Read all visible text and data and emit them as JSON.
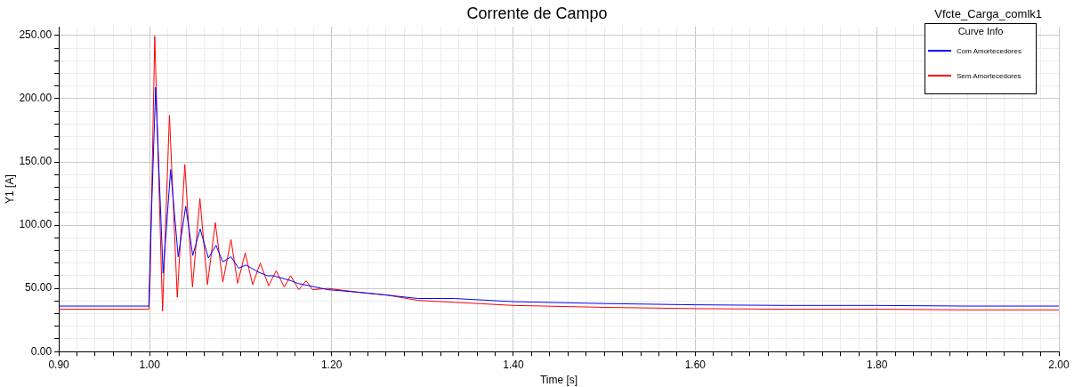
{
  "chart_data": {
    "type": "line",
    "title": "Corrente de Campo",
    "xlabel": "Time [s]",
    "ylabel": "Y1 [A]",
    "legend_title": "Curve Info",
    "annotations": [
      "Vfcte_Carga_comlk1"
    ],
    "xlim": [
      0.9,
      2.0
    ],
    "ylim": [
      0,
      257
    ],
    "xticks": [
      {
        "value": 0.9,
        "label": "0.90"
      },
      {
        "value": 0.92,
        "label": null
      },
      {
        "value": 0.94,
        "label": null
      },
      {
        "value": 0.96,
        "label": null
      },
      {
        "value": 0.98,
        "label": null
      },
      {
        "value": 1.0,
        "label": "1.00"
      },
      {
        "value": 1.02,
        "label": null
      },
      {
        "value": 1.04,
        "label": null
      },
      {
        "value": 1.06,
        "label": null
      },
      {
        "value": 1.08,
        "label": null
      },
      {
        "value": 1.1,
        "label": null
      },
      {
        "value": 1.12,
        "label": null
      },
      {
        "value": 1.14,
        "label": null
      },
      {
        "value": 1.16,
        "label": null
      },
      {
        "value": 1.18,
        "label": null
      },
      {
        "value": 1.2,
        "label": "1.20"
      },
      {
        "value": 1.22,
        "label": null
      },
      {
        "value": 1.24,
        "label": null
      },
      {
        "value": 1.26,
        "label": null
      },
      {
        "value": 1.28,
        "label": null
      },
      {
        "value": 1.3,
        "label": null
      },
      {
        "value": 1.32,
        "label": null
      },
      {
        "value": 1.34,
        "label": null
      },
      {
        "value": 1.36,
        "label": null
      },
      {
        "value": 1.38,
        "label": null
      },
      {
        "value": 1.4,
        "label": "1.40"
      },
      {
        "value": 1.42,
        "label": null
      },
      {
        "value": 1.44,
        "label": null
      },
      {
        "value": 1.46,
        "label": null
      },
      {
        "value": 1.48,
        "label": null
      },
      {
        "value": 1.5,
        "label": null
      },
      {
        "value": 1.52,
        "label": null
      },
      {
        "value": 1.54,
        "label": null
      },
      {
        "value": 1.56,
        "label": null
      },
      {
        "value": 1.58,
        "label": null
      },
      {
        "value": 1.6,
        "label": "1.60"
      },
      {
        "value": 1.62,
        "label": null
      },
      {
        "value": 1.64,
        "label": null
      },
      {
        "value": 1.66,
        "label": null
      },
      {
        "value": 1.68,
        "label": null
      },
      {
        "value": 1.7,
        "label": null
      },
      {
        "value": 1.72,
        "label": null
      },
      {
        "value": 1.74,
        "label": null
      },
      {
        "value": 1.76,
        "label": null
      },
      {
        "value": 1.78,
        "label": null
      },
      {
        "value": 1.8,
        "label": "1.80"
      },
      {
        "value": 1.82,
        "label": null
      },
      {
        "value": 1.84,
        "label": null
      },
      {
        "value": 1.86,
        "label": null
      },
      {
        "value": 1.88,
        "label": null
      },
      {
        "value": 1.9,
        "label": null
      },
      {
        "value": 1.92,
        "label": null
      },
      {
        "value": 1.94,
        "label": null
      },
      {
        "value": 1.96,
        "label": null
      },
      {
        "value": 1.98,
        "label": null
      },
      {
        "value": 2.0,
        "label": "2.00"
      }
    ],
    "yticks": [
      {
        "value": 0,
        "label": "0.00"
      },
      {
        "value": 10,
        "label": null
      },
      {
        "value": 20,
        "label": null
      },
      {
        "value": 30,
        "label": null
      },
      {
        "value": 40,
        "label": null
      },
      {
        "value": 50,
        "label": "50.00"
      },
      {
        "value": 60,
        "label": null
      },
      {
        "value": 70,
        "label": null
      },
      {
        "value": 80,
        "label": null
      },
      {
        "value": 90,
        "label": null
      },
      {
        "value": 100,
        "label": "100.00"
      },
      {
        "value": 110,
        "label": null
      },
      {
        "value": 120,
        "label": null
      },
      {
        "value": 130,
        "label": null
      },
      {
        "value": 140,
        "label": null
      },
      {
        "value": 150,
        "label": "150.00"
      },
      {
        "value": 160,
        "label": null
      },
      {
        "value": 170,
        "label": null
      },
      {
        "value": 180,
        "label": null
      },
      {
        "value": 190,
        "label": null
      },
      {
        "value": 200,
        "label": "200.00"
      },
      {
        "value": 210,
        "label": null
      },
      {
        "value": 220,
        "label": null
      },
      {
        "value": 230,
        "label": null
      },
      {
        "value": 240,
        "label": null
      },
      {
        "value": 250,
        "label": "250.00"
      }
    ],
    "grid": true,
    "legend": "top right",
    "marker": "none",
    "line_style": "solid",
    "series": [
      {
        "name": "Com Amortecedores",
        "color": "#0000ff",
        "x": [
          0.9,
          0.95,
          0.999,
          1.001,
          1.0065,
          1.0147,
          1.023,
          1.0313,
          1.0396,
          1.0473,
          1.0555,
          1.0645,
          1.0729,
          1.0804,
          1.0894,
          1.0977,
          1.106,
          1.1192,
          1.1292,
          1.1358,
          1.1557,
          1.1624,
          1.196,
          1.229,
          1.262,
          1.295,
          1.335,
          1.4,
          1.5,
          1.6,
          1.7,
          1.8,
          1.9,
          2.0
        ],
        "values": [
          36,
          36,
          36,
          90,
          209,
          62,
          144,
          75,
          115,
          76,
          97,
          74,
          84,
          71,
          75,
          66,
          68.5,
          63,
          60,
          60,
          56,
          54,
          49,
          47,
          44.6,
          42,
          42,
          39.5,
          38,
          37,
          36.5,
          36.5,
          36,
          36
        ]
      },
      {
        "name": "Sem Amortecedores",
        "color": "#ff0000",
        "x": [
          0.9,
          0.95,
          0.999,
          1.0005,
          1.0055,
          1.0141,
          1.0217,
          1.0303,
          1.0386,
          1.047,
          1.0552,
          1.0635,
          1.0721,
          1.0804,
          1.0894,
          1.0967,
          1.105,
          1.1132,
          1.1216,
          1.1308,
          1.1391,
          1.148,
          1.155,
          1.164,
          1.172,
          1.179,
          1.196,
          1.229,
          1.262,
          1.295,
          1.335,
          1.4,
          1.5,
          1.6,
          1.7,
          1.8,
          1.9,
          2.0
        ],
        "values": [
          33.5,
          33.5,
          33.5,
          60,
          249.5,
          32,
          187,
          43,
          148,
          51,
          121,
          53,
          102,
          55,
          88.6,
          54,
          78,
          53,
          70,
          52,
          64,
          51,
          60,
          49,
          56,
          49,
          50,
          47,
          44.6,
          40.5,
          39,
          36.5,
          35,
          34,
          33.5,
          33.5,
          33,
          33
        ]
      }
    ]
  }
}
